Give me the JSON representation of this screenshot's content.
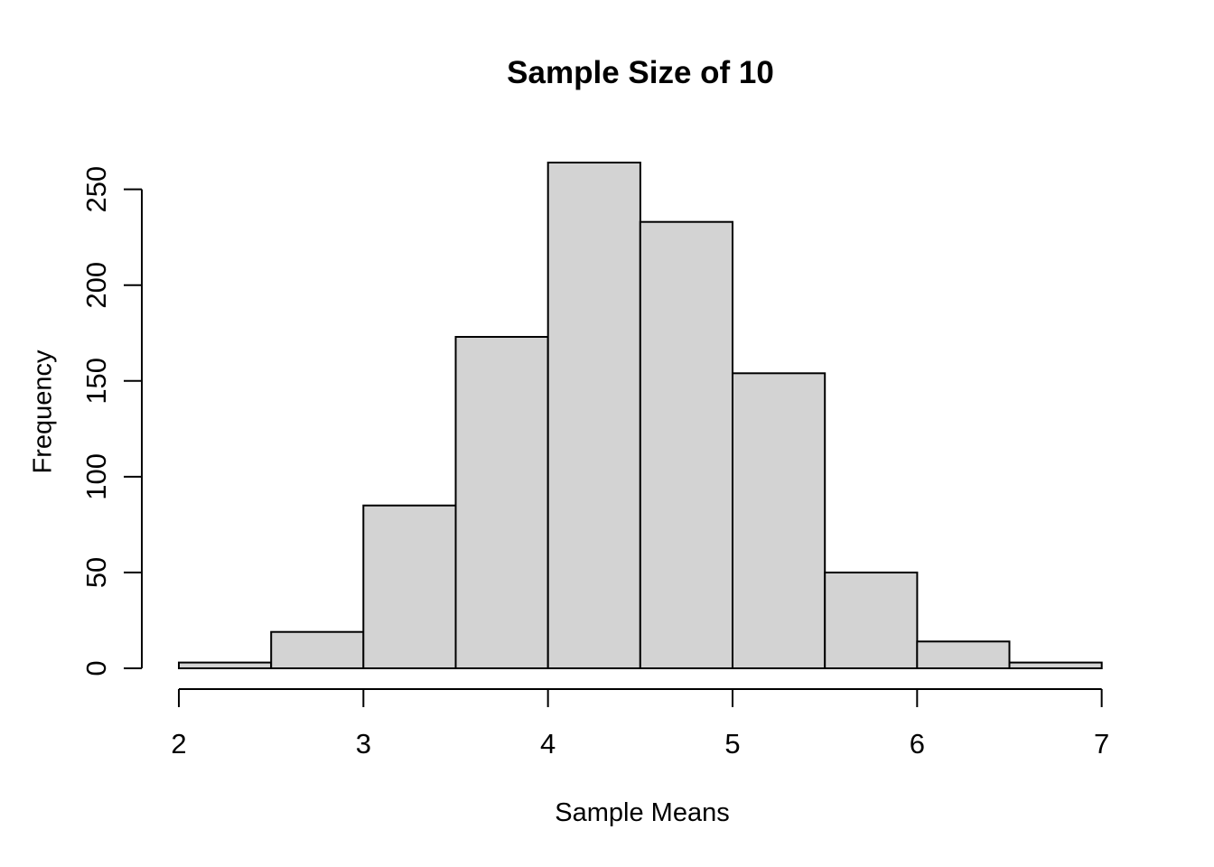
{
  "chart_data": {
    "type": "bar",
    "subtype": "histogram",
    "title": "Sample Size of 10",
    "xlabel": "Sample Means",
    "ylabel": "Frequency",
    "bin_start": 2,
    "bin_width": 0.5,
    "bins": [
      "2.0-2.5",
      "2.5-3.0",
      "3.0-3.5",
      "3.5-4.0",
      "4.0-4.5",
      "4.5-5.0",
      "5.0-5.5",
      "5.5-6.0",
      "6.0-6.5",
      "6.5-7.0"
    ],
    "counts": [
      3,
      19,
      85,
      173,
      264,
      233,
      154,
      50,
      14,
      3
    ],
    "x_ticks": [
      2,
      3,
      4,
      5,
      6,
      7
    ],
    "y_ticks": [
      0,
      50,
      100,
      150,
      200,
      250
    ],
    "xlim": [
      2,
      7
    ],
    "ylim": [
      0,
      265
    ],
    "grid": "off",
    "legend": "none",
    "bar_fill": "#d3d3d3",
    "bar_border": "#000000",
    "axis_color": "#000000",
    "background": "#ffffff"
  }
}
